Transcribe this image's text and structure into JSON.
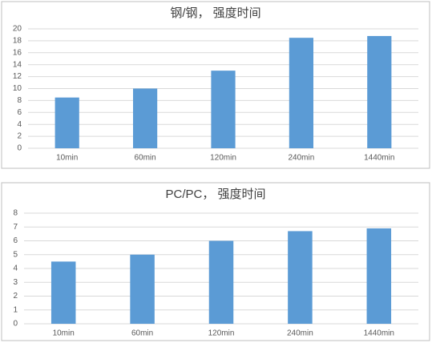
{
  "chart_data": [
    {
      "type": "bar",
      "title": "钢/钢， 强度时间",
      "categories": [
        "10min",
        "60min",
        "120min",
        "240min",
        "1440min"
      ],
      "values": [
        8.5,
        10,
        13,
        18.5,
        18.8
      ],
      "color": "#5b9bd5",
      "ylim": [
        0,
        20
      ],
      "yticks": [
        0,
        2,
        4,
        6,
        8,
        10,
        12,
        14,
        16,
        18,
        20
      ],
      "grid": true
    },
    {
      "type": "bar",
      "title": "PC/PC， 强度时间",
      "categories": [
        "10min",
        "60min",
        "120min",
        "240min",
        "1440min"
      ],
      "values": [
        4.5,
        5,
        6,
        6.7,
        6.9
      ],
      "color": "#5b9bd5",
      "ylim": [
        0,
        8
      ],
      "yticks": [
        0,
        1,
        2,
        3,
        4,
        5,
        6,
        7,
        8
      ],
      "grid": true
    }
  ]
}
